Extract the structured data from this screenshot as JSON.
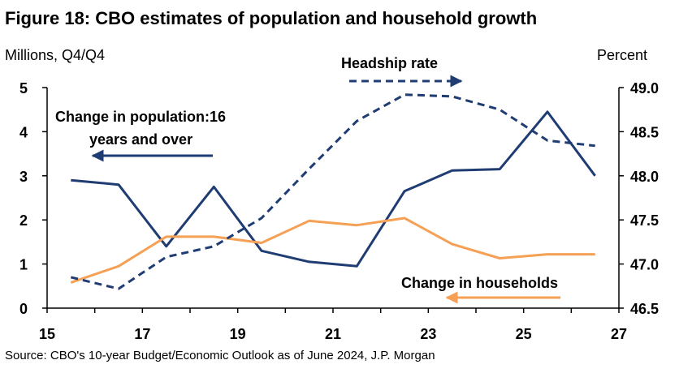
{
  "title": "Figure 18: CBO estimates of population and household growth",
  "left_axis_label": "Millions, Q4/Q4",
  "right_axis_label": "Percent",
  "source": "Source: CBO's 10-year Budget/Economic Outlook as of June 2024, J.P. Morgan",
  "colors": {
    "population": "#1f3c73",
    "households": "#f5a055",
    "headship": "#1f3c73"
  },
  "chart_data": {
    "type": "line",
    "title": "Figure 18: CBO estimates of population and household growth",
    "x": [
      15.5,
      16.5,
      17.5,
      18.5,
      19.5,
      20.5,
      21.5,
      22.5,
      23.5,
      24.5,
      25.5,
      26.5
    ],
    "xlim": [
      15,
      27
    ],
    "xticks": [
      "15",
      "17",
      "19",
      "21",
      "23",
      "25",
      "27"
    ],
    "y_left": {
      "label": "Millions, Q4/Q4",
      "ylim": [
        0,
        5
      ],
      "ticks": [
        "0",
        "1",
        "2",
        "3",
        "4",
        "5"
      ]
    },
    "y_right": {
      "label": "Percent",
      "ylim": [
        46.5,
        49.0
      ],
      "ticks": [
        "46.5",
        "47.0",
        "47.5",
        "48.0",
        "48.5",
        "49.0"
      ]
    },
    "series": [
      {
        "name": "Change in population:16 years and over",
        "axis": "left",
        "style": "solid",
        "values": [
          2.9,
          2.8,
          1.4,
          2.75,
          1.3,
          1.05,
          0.95,
          2.65,
          3.12,
          3.15,
          4.45,
          3.0
        ]
      },
      {
        "name": "Change in households",
        "axis": "left",
        "style": "solid",
        "values": [
          0.58,
          0.95,
          1.62,
          1.62,
          1.48,
          1.98,
          1.88,
          2.04,
          1.45,
          1.13,
          1.22,
          1.22
        ]
      },
      {
        "name": "Headship rate",
        "axis": "right",
        "style": "dashed",
        "values": [
          46.85,
          46.72,
          47.08,
          47.2,
          47.52,
          48.08,
          48.62,
          48.92,
          48.9,
          48.75,
          48.4,
          48.34
        ]
      }
    ],
    "annotations": {
      "population_line1": "Change in population:16",
      "population_line2": "years and over",
      "households": "Change in households",
      "headship": "Headship rate"
    },
    "grid": false,
    "legend": "inline annotations"
  }
}
